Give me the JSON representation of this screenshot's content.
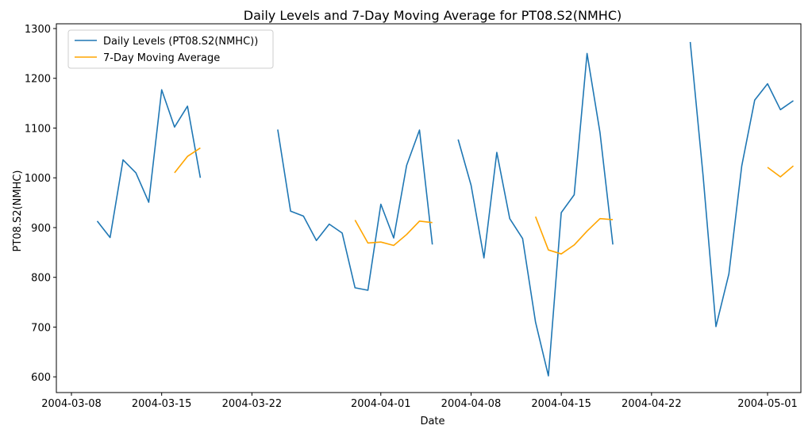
{
  "chart_data": {
    "type": "line",
    "title": "Daily Levels and 7-Day Moving Average for PT08.S2(NMHC)",
    "xlabel": "Date",
    "ylabel": "PT08.S2(NMHC)",
    "xlim": [
      "2004-03-08",
      "2004-05-01"
    ],
    "ylim": [
      570,
      1300
    ],
    "x_ticks": [
      "2004-03-08",
      "2004-03-15",
      "2004-03-22",
      "2004-04-01",
      "2004-04-08",
      "2004-04-15",
      "2004-04-22",
      "2004-05-01"
    ],
    "y_ticks": [
      600,
      700,
      800,
      900,
      1000,
      1100,
      1200,
      1300
    ],
    "grid": false,
    "legend_position": "top-left",
    "series": [
      {
        "name": "Daily Levels (PT08.S2(NMHC))",
        "color": "#1f77b4",
        "points": [
          [
            "2004-03-10",
            913
          ],
          [
            "2004-03-11",
            880
          ],
          [
            "2004-03-12",
            1036
          ],
          [
            "2004-03-13",
            1010
          ],
          [
            "2004-03-14",
            951
          ],
          [
            "2004-03-15",
            1177
          ],
          [
            "2004-03-16",
            1102
          ],
          [
            "2004-03-17",
            1144
          ],
          [
            "2004-03-18",
            1000
          ],
          [
            "2004-03-19",
            null
          ],
          [
            "2004-03-24",
            1097
          ],
          [
            "2004-03-25",
            933
          ],
          [
            "2004-03-26",
            923
          ],
          [
            "2004-03-27",
            874
          ],
          [
            "2004-03-28",
            907
          ],
          [
            "2004-03-29",
            889
          ],
          [
            "2004-03-30",
            779
          ],
          [
            "2004-03-31",
            774
          ],
          [
            "2004-04-01",
            947
          ],
          [
            "2004-04-02",
            879
          ],
          [
            "2004-04-03",
            1025
          ],
          [
            "2004-04-04",
            1096
          ],
          [
            "2004-04-05",
            866
          ],
          [
            "2004-04-06",
            null
          ],
          [
            "2004-04-07",
            1077
          ],
          [
            "2004-04-08",
            985
          ],
          [
            "2004-04-09",
            839
          ],
          [
            "2004-04-10",
            1051
          ],
          [
            "2004-04-11",
            918
          ],
          [
            "2004-04-12",
            878
          ],
          [
            "2004-04-13",
            710
          ],
          [
            "2004-04-14",
            602
          ],
          [
            "2004-04-15",
            930
          ],
          [
            "2004-04-16",
            966
          ],
          [
            "2004-04-17",
            1250
          ],
          [
            "2004-04-18",
            1091
          ],
          [
            "2004-04-19",
            866
          ],
          [
            "2004-04-20",
            null
          ],
          [
            "2004-04-25",
            1273
          ],
          [
            "2004-04-26",
            1004
          ],
          [
            "2004-04-27",
            701
          ],
          [
            "2004-04-28",
            807
          ],
          [
            "2004-04-29",
            1024
          ],
          [
            "2004-04-30",
            1156
          ],
          [
            "2004-05-01",
            1189
          ],
          [
            "2004-05-02",
            1137
          ],
          [
            "2004-05-03",
            1155
          ]
        ]
      },
      {
        "name": "7-Day Moving Average",
        "color": "#ffa500",
        "points": [
          [
            "2004-03-16",
            1010
          ],
          [
            "2004-03-17",
            1043
          ],
          [
            "2004-03-18",
            1060
          ],
          [
            "2004-03-19",
            null
          ],
          [
            "2004-03-30",
            915
          ],
          [
            "2004-03-31",
            869
          ],
          [
            "2004-04-01",
            871
          ],
          [
            "2004-04-02",
            864
          ],
          [
            "2004-04-03",
            886
          ],
          [
            "2004-04-04",
            913
          ],
          [
            "2004-04-05",
            910
          ],
          [
            "2004-04-06",
            null
          ],
          [
            "2004-04-13",
            922
          ],
          [
            "2004-04-14",
            855
          ],
          [
            "2004-04-15",
            847
          ],
          [
            "2004-04-16",
            865
          ],
          [
            "2004-04-17",
            893
          ],
          [
            "2004-04-18",
            918
          ],
          [
            "2004-04-19",
            916
          ],
          [
            "2004-04-20",
            null
          ],
          [
            "2004-05-01",
            1021
          ],
          [
            "2004-05-02",
            1002
          ],
          [
            "2004-05-03",
            1024
          ]
        ]
      }
    ]
  }
}
